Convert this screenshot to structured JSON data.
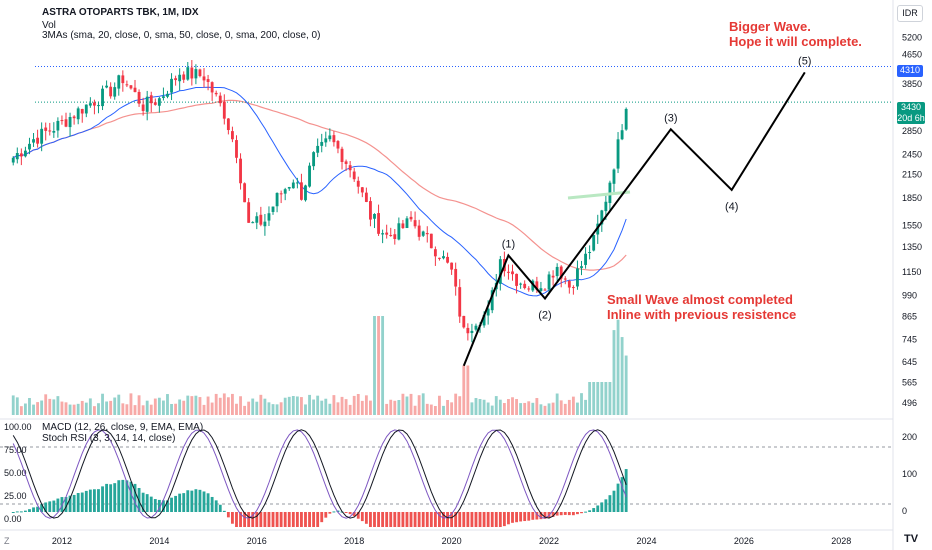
{
  "header": {
    "title": "ASTRA OTOPARTS TBK, 1M, IDX",
    "volume_label": "Vol",
    "mas_label": "3MAs (sma, 20, close, 0, sma, 50, close, 0, sma, 200, close, 0)",
    "macd_label": "MACD (12, 26, close, 9, EMA, EMA)",
    "stoch_label": "Stoch RSI (3, 3, 14, 14, close)"
  },
  "annotations": {
    "big_wave": [
      "Bigger Wave.",
      "Hope it will complete."
    ],
    "small_wave": [
      "Small Wave almost completed",
      "Inline with previous resistence"
    ]
  },
  "price_scale": {
    "currency": "IDR",
    "ticks": [
      "5200",
      "4650",
      "3850",
      "3430",
      "2850",
      "2450",
      "2150",
      "1850",
      "1550",
      "1350",
      "1150",
      "990",
      "865",
      "745",
      "645",
      "565",
      "496"
    ],
    "resistance_label": "4310",
    "last_price": "3430",
    "countdown": "20d 6h"
  },
  "x_axis": {
    "labels": [
      "2012",
      "2014",
      "2016",
      "2018",
      "2020",
      "2022",
      "2024",
      "2026",
      "2028"
    ]
  },
  "colors": {
    "up": "#089981",
    "down": "#f23645",
    "ma20": "#2962ff",
    "ma50": "#f23645",
    "wave": "#000000",
    "note": "#e53935",
    "dotted_line": "#2962ff",
    "vol_up": "#92d2cc",
    "vol_down": "#f7a9a7",
    "macd_up": "#26a69a",
    "macd_down": "#ef5350"
  },
  "chart_data": [
    {
      "type": "candlestick",
      "title": "ASTRA OTOPARTS TBK, 1M, IDX",
      "scale": "log",
      "y_range": [
        450,
        6200
      ],
      "x_range": [
        "2010-09",
        "2028-12"
      ],
      "waypoints": [
        [
          "2011-01",
          2400
        ],
        [
          "2011-06",
          2700
        ],
        [
          "2012-01",
          3000
        ],
        [
          "2012-06",
          3300
        ],
        [
          "2013-01",
          3700
        ],
        [
          "2013-04",
          4000
        ],
        [
          "2013-09",
          3350
        ],
        [
          "2014-01",
          3500
        ],
        [
          "2014-06",
          4150
        ],
        [
          "2014-12",
          4050
        ],
        [
          "2015-05",
          3200
        ],
        [
          "2015-08",
          2500
        ],
        [
          "2015-11",
          1550
        ],
        [
          "2016-03",
          1600
        ],
        [
          "2016-06",
          1850
        ],
        [
          "2016-10",
          2100
        ],
        [
          "2016-12",
          1900
        ],
        [
          "2017-03",
          2400
        ],
        [
          "2017-07",
          2700
        ],
        [
          "2017-10",
          2450
        ],
        [
          "2018-01",
          2150
        ],
        [
          "2018-05",
          1650
        ],
        [
          "2018-09",
          1450
        ],
        [
          "2018-12",
          1500
        ],
        [
          "2019-03",
          1600
        ],
        [
          "2019-06",
          1450
        ],
        [
          "2019-10",
          1300
        ],
        [
          "2020-01",
          1150
        ],
        [
          "2020-04",
          780
        ],
        [
          "2020-07",
          850
        ],
        [
          "2020-10",
          880
        ],
        [
          "2021-01",
          1250
        ],
        [
          "2021-05",
          1100
        ],
        [
          "2021-08",
          1050
        ],
        [
          "2021-12",
          1080
        ],
        [
          "2022-03",
          1200
        ],
        [
          "2022-06",
          1050
        ],
        [
          "2022-09",
          1200
        ],
        [
          "2022-12",
          1400
        ],
        [
          "2023-03",
          1850
        ],
        [
          "2023-06",
          2600
        ],
        [
          "2023-08",
          3430
        ]
      ],
      "ma_overlays": [
        "sma20",
        "sma50",
        "sma200"
      ],
      "resistance_level": 4310
    },
    {
      "type": "line",
      "title": "Elliott wave projection",
      "points": [
        {
          "label": "",
          "x": "2020-04",
          "y": 630
        },
        {
          "label": "(1)",
          "x": "2021-03",
          "y": 1280
        },
        {
          "label": "(2)",
          "x": "2021-12",
          "y": 970
        },
        {
          "label": "(3)",
          "x": "2024-07",
          "y": 2880
        },
        {
          "label": "(4)",
          "x": "2025-10",
          "y": 1950
        },
        {
          "label": "(5)",
          "x": "2027-04",
          "y": 4150
        }
      ]
    },
    {
      "type": "bar",
      "title": "Vol",
      "pattern": "relative volume with spikes near 2018-07, 2020-04 and 2023-07"
    },
    {
      "type": "bar+line",
      "title": "MACD (12, 26, close, 9, EMA, EMA)",
      "right_axis_ticks": [
        "200",
        "100",
        "0"
      ]
    },
    {
      "type": "line",
      "title": "Stoch RSI (3, 3, 14, 14, close)",
      "left_axis_ticks": [
        "100.00",
        "75.00",
        "50.00",
        "25.00",
        "0.00"
      ]
    }
  ]
}
